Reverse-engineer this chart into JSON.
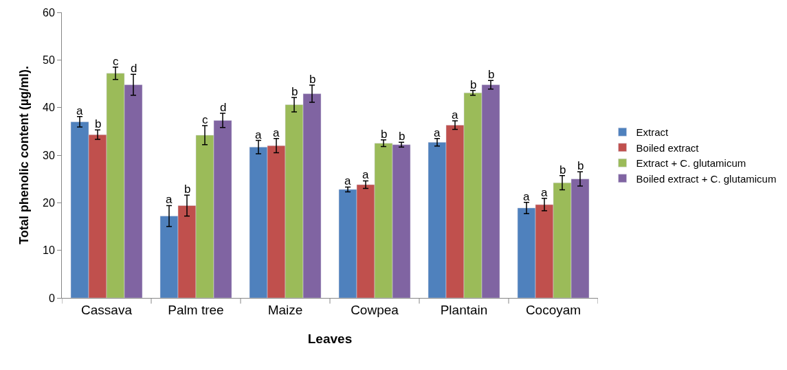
{
  "chart_data": {
    "type": "bar",
    "xlabel": "Leaves",
    "ylabel": "Total phenolic content (µg/ml).",
    "categories": [
      "Cassava",
      "Palm tree",
      "Maize",
      "Cowpea",
      "Plantain",
      "Cocoyam"
    ],
    "series": [
      {
        "name": "Extract",
        "color": "#4f81bd",
        "values": [
          37,
          17.2,
          31.7,
          22.8,
          32.7,
          18.9
        ],
        "errors": [
          1.1,
          2.2,
          1.4,
          0.5,
          0.8,
          1.2
        ],
        "value_labels": [
          "a",
          "a",
          "a",
          "a",
          "a",
          "a"
        ]
      },
      {
        "name": "Boiled extract",
        "color": "#c0504d",
        "values": [
          34.3,
          19.4,
          32,
          23.8,
          36.3,
          19.6
        ],
        "errors": [
          1,
          2.2,
          1.5,
          0.8,
          0.9,
          1.3
        ],
        "value_labels": [
          "b",
          "b",
          "a",
          "a",
          "a",
          "a"
        ]
      },
      {
        "name": "Extract + C. glutamicum",
        "color": "#9bbb59",
        "values": [
          47.2,
          34.2,
          40.6,
          32.5,
          43.1,
          24.2
        ],
        "errors": [
          1.3,
          2,
          1.5,
          0.7,
          0.5,
          1.5
        ],
        "value_labels": [
          "c",
          "c",
          "b",
          "b",
          "b",
          "b"
        ]
      },
      {
        "name": "Boiled extract + C. glutamicum",
        "color": "#8064a2",
        "values": [
          44.8,
          37.3,
          42.9,
          32.2,
          44.8,
          25
        ],
        "errors": [
          2.2,
          1.5,
          1.8,
          0.5,
          0.9,
          1.5
        ],
        "value_labels": [
          "d",
          "d",
          "b",
          "b",
          "b",
          "b"
        ]
      }
    ],
    "ylim": [
      0,
      60
    ],
    "yticks": [
      0,
      10,
      20,
      30,
      40,
      50,
      60
    ],
    "legend": "right"
  }
}
